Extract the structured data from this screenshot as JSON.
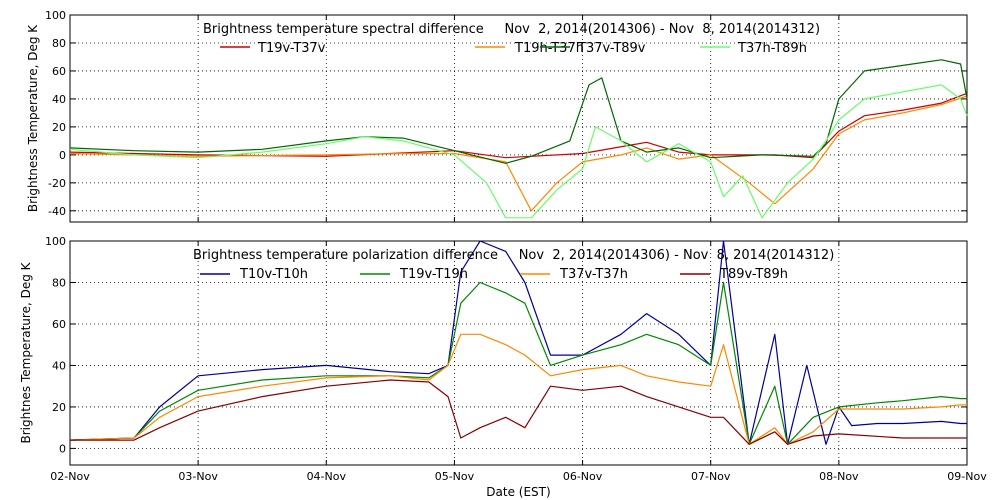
{
  "chart_data": [
    {
      "type": "line",
      "title": "Brightness temperature spectral difference     Nov  2, 2014(2014306) - Nov  8, 2014(2014312)",
      "ylabel": "Brightness Temperature, Deg K",
      "xlabel": "",
      "ylim": [
        -48,
        100
      ],
      "yticks": [
        -40,
        -20,
        0,
        20,
        40,
        60,
        80,
        100
      ],
      "xlim": [
        0,
        7
      ],
      "grid": true,
      "legend_position": "top",
      "series": [
        {
          "name": "T19v-T37v",
          "color": "#cc0000",
          "x": [
            0,
            1,
            2,
            3,
            3.4,
            4,
            4.5,
            4.75,
            5,
            5.5,
            5.8,
            6,
            6.2,
            6.5,
            6.8,
            7
          ],
          "y": [
            2,
            0,
            -1,
            3,
            -2,
            1,
            9,
            2,
            0,
            0,
            -2,
            17,
            28,
            32,
            37,
            44
          ]
        },
        {
          "name": "T19h-T37h",
          "color": "#ff8800",
          "x": [
            0,
            1,
            2,
            2.6,
            3,
            3.4,
            3.6,
            3.8,
            4,
            4.3,
            4.5,
            4.75,
            5,
            5.3,
            5.5,
            5.8,
            6,
            6.2,
            6.5,
            6.8,
            7
          ],
          "y": [
            1,
            -1,
            0,
            1,
            1,
            -5,
            -40,
            -20,
            -5,
            0,
            5,
            -3,
            0,
            -20,
            -35,
            -10,
            15,
            25,
            30,
            36,
            42
          ]
        },
        {
          "name": "T37v-T89v",
          "color": "#006600",
          "x": [
            0,
            0.5,
            1,
            1.5,
            2,
            2.3,
            2.6,
            3,
            3.4,
            3.6,
            3.9,
            4.05,
            4.15,
            4.3,
            4.5,
            4.75,
            5,
            5.4,
            5.8,
            5.9,
            6,
            6.2,
            6.5,
            6.8,
            6.95,
            7
          ],
          "y": [
            5,
            3,
            2,
            4,
            10,
            13,
            12,
            3,
            -6,
            -1,
            10,
            50,
            55,
            10,
            2,
            5,
            -2,
            0,
            -1,
            8,
            40,
            60,
            64,
            68,
            65,
            40
          ]
        },
        {
          "name": "T37h-T89h",
          "color": "#66ff66",
          "x": [
            0,
            0.5,
            1,
            1.5,
            2,
            2.3,
            2.6,
            3,
            3.25,
            3.4,
            3.6,
            3.8,
            4,
            4.1,
            4.3,
            4.5,
            4.75,
            5,
            5.1,
            5.25,
            5.4,
            5.6,
            5.8,
            5.9,
            6,
            6.2,
            6.5,
            6.8,
            6.95,
            7
          ],
          "y": [
            4,
            0,
            -2,
            2,
            8,
            13,
            10,
            0,
            -20,
            -45,
            -45,
            -25,
            -10,
            20,
            10,
            -5,
            8,
            -5,
            -30,
            -15,
            -45,
            -20,
            -3,
            10,
            25,
            40,
            45,
            50,
            40,
            28
          ]
        }
      ],
      "legend": [
        {
          "label": "T19v-T37v",
          "color": "#cc0000"
        },
        {
          "label": "T19h-T37h",
          "color": "#ff8800"
        },
        {
          "label": "T37v-T89v",
          "color": "#006600"
        },
        {
          "label": "T37h-T89h",
          "color": "#66ff66"
        }
      ]
    },
    {
      "type": "line",
      "title": "Brightness temperature polarization difference     Nov  2, 2014(2014306) - Nov  8, 2014(2014312)",
      "ylabel": "Brightnes Temperature, Deg K",
      "xlabel": "Date (EST)",
      "ylim": [
        -8,
        100
      ],
      "yticks": [
        0,
        20,
        40,
        60,
        80,
        100
      ],
      "xlim": [
        0,
        7
      ],
      "xtick_labels": [
        "02-Nov",
        "03-Nov",
        "04-Nov",
        "05-Nov",
        "06-Nov",
        "07-Nov",
        "08-Nov",
        "09-Nov"
      ],
      "grid": true,
      "legend_position": "top",
      "series": [
        {
          "name": "T10v-T10h",
          "color": "#000099",
          "x": [
            0,
            0.5,
            0.7,
            1,
            1.5,
            2,
            2.5,
            2.8,
            2.95,
            3.05,
            3.2,
            3.4,
            3.55,
            3.75,
            4,
            4.3,
            4.5,
            4.75,
            5,
            5.1,
            5.3,
            5.5,
            5.6,
            5.75,
            5.9,
            6,
            6.1,
            6.3,
            6.5,
            6.8,
            6.95,
            7
          ],
          "y": [
            4,
            5,
            20,
            35,
            38,
            40,
            37,
            36,
            40,
            85,
            100,
            95,
            80,
            45,
            45,
            55,
            65,
            55,
            40,
            100,
            2,
            55,
            2,
            40,
            2,
            20,
            11,
            12,
            12,
            13,
            12,
            12
          ]
        },
        {
          "name": "T19v-T19h",
          "color": "#008800",
          "x": [
            0,
            0.5,
            0.7,
            1,
            1.5,
            2,
            2.5,
            2.8,
            2.95,
            3.05,
            3.2,
            3.4,
            3.55,
            3.75,
            4,
            4.3,
            4.5,
            4.75,
            5,
            5.1,
            5.3,
            5.5,
            5.6,
            5.8,
            6,
            6.3,
            6.5,
            6.8,
            6.95,
            7
          ],
          "y": [
            4,
            5,
            18,
            28,
            33,
            35,
            35,
            34,
            40,
            70,
            80,
            75,
            70,
            40,
            45,
            50,
            55,
            50,
            40,
            80,
            2,
            30,
            2,
            15,
            20,
            22,
            23,
            25,
            24,
            24
          ]
        },
        {
          "name": "T37v-T37h",
          "color": "#ff8800",
          "x": [
            0,
            0.5,
            0.7,
            1,
            1.5,
            2,
            2.5,
            2.8,
            2.95,
            3.05,
            3.2,
            3.4,
            3.55,
            3.75,
            4,
            4.3,
            4.5,
            4.75,
            5,
            5.1,
            5.3,
            5.5,
            5.6,
            5.8,
            6,
            6.5,
            6.8,
            6.95,
            7
          ],
          "y": [
            4,
            5,
            15,
            25,
            30,
            34,
            35,
            33,
            40,
            55,
            55,
            50,
            45,
            35,
            38,
            40,
            35,
            32,
            30,
            50,
            2,
            10,
            2,
            8,
            19,
            19,
            20,
            21,
            21
          ]
        },
        {
          "name": "T89v-T89h",
          "color": "#880000",
          "x": [
            0,
            0.5,
            0.7,
            1,
            1.5,
            2,
            2.5,
            2.8,
            2.95,
            3.05,
            3.2,
            3.4,
            3.55,
            3.75,
            4,
            4.3,
            4.5,
            4.75,
            5,
            5.1,
            5.3,
            5.5,
            5.6,
            5.8,
            6,
            6.5,
            6.8,
            6.95,
            7
          ],
          "y": [
            4,
            4,
            10,
            18,
            25,
            30,
            33,
            32,
            25,
            5,
            10,
            15,
            10,
            30,
            28,
            30,
            25,
            20,
            15,
            15,
            2,
            8,
            2,
            6,
            7,
            5,
            5,
            5,
            5
          ]
        }
      ],
      "legend": [
        {
          "label": "T10v-T10h",
          "color": "#000099"
        },
        {
          "label": "T19v-T19h",
          "color": "#008800"
        },
        {
          "label": "T37v-T37h",
          "color": "#ff8800"
        },
        {
          "label": "T89v-T89h",
          "color": "#880000"
        }
      ]
    }
  ]
}
